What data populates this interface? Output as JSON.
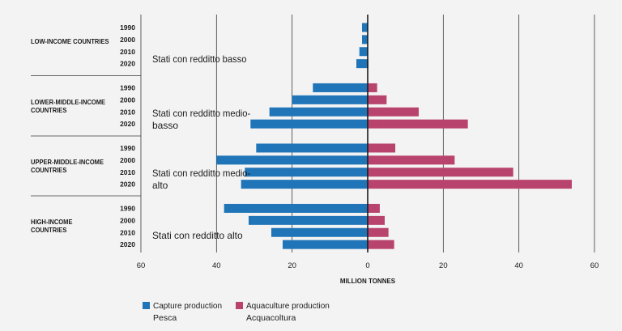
{
  "chart_data": {
    "type": "bar",
    "orientation": "horizontal-diverging",
    "xlabel": "MILLION TONNES",
    "xlim": [
      -60,
      60
    ],
    "x_ticks": [
      60,
      40,
      20,
      0,
      20,
      40,
      60
    ],
    "years": [
      "1990",
      "2000",
      "2010",
      "2020"
    ],
    "groups": [
      {
        "name": "LOW-INCOME COUNTRIES",
        "italian": "Stati con redditto basso",
        "capture": [
          1.5,
          1.5,
          2.2,
          3.0
        ],
        "aquaculture": [
          0.1,
          0.1,
          0.1,
          0.2
        ]
      },
      {
        "name": "LOWER-MIDDLE-INCOME COUNTRIES",
        "italian": "Stati con redditto medio-basso",
        "capture": [
          14.5,
          20.0,
          26.0,
          31.0
        ],
        "aquaculture": [
          2.5,
          5.0,
          13.5,
          26.5
        ]
      },
      {
        "name": "UPPER-MIDDLE-INCOME COUNTRIES",
        "italian": "Stati con redditto medio-alto",
        "capture": [
          29.5,
          40.0,
          32.5,
          33.5
        ],
        "aquaculture": [
          7.3,
          23.0,
          38.5,
          54.0
        ]
      },
      {
        "name": "HIGH-INCOME COUNTRIES",
        "italian": "Stati con redditto alto",
        "capture": [
          38.0,
          31.5,
          25.5,
          22.5
        ],
        "aquaculture": [
          3.2,
          4.5,
          5.5,
          7.0
        ]
      }
    ],
    "series": [
      {
        "name": "Capture production",
        "italian": "Pesca",
        "color": "#1f75b8"
      },
      {
        "name": "Aquaculture production",
        "italian": "Acquacoltura",
        "color": "#b8436d"
      }
    ]
  },
  "groups_text": {
    "low": "LOW-INCOME COUNTRIES",
    "lower_middle": "LOWER-MIDDLE-INCOME COUNTRIES",
    "upper_middle": "UPPER-MIDDLE-INCOME COUNTRIES",
    "high": "HIGH-INCOME COUNTRIES"
  },
  "legend": {
    "capture": "Capture production",
    "capture_it": "Pesca",
    "aquaculture": "Aquaculture production",
    "aquaculture_it": "Acquacoltura"
  }
}
